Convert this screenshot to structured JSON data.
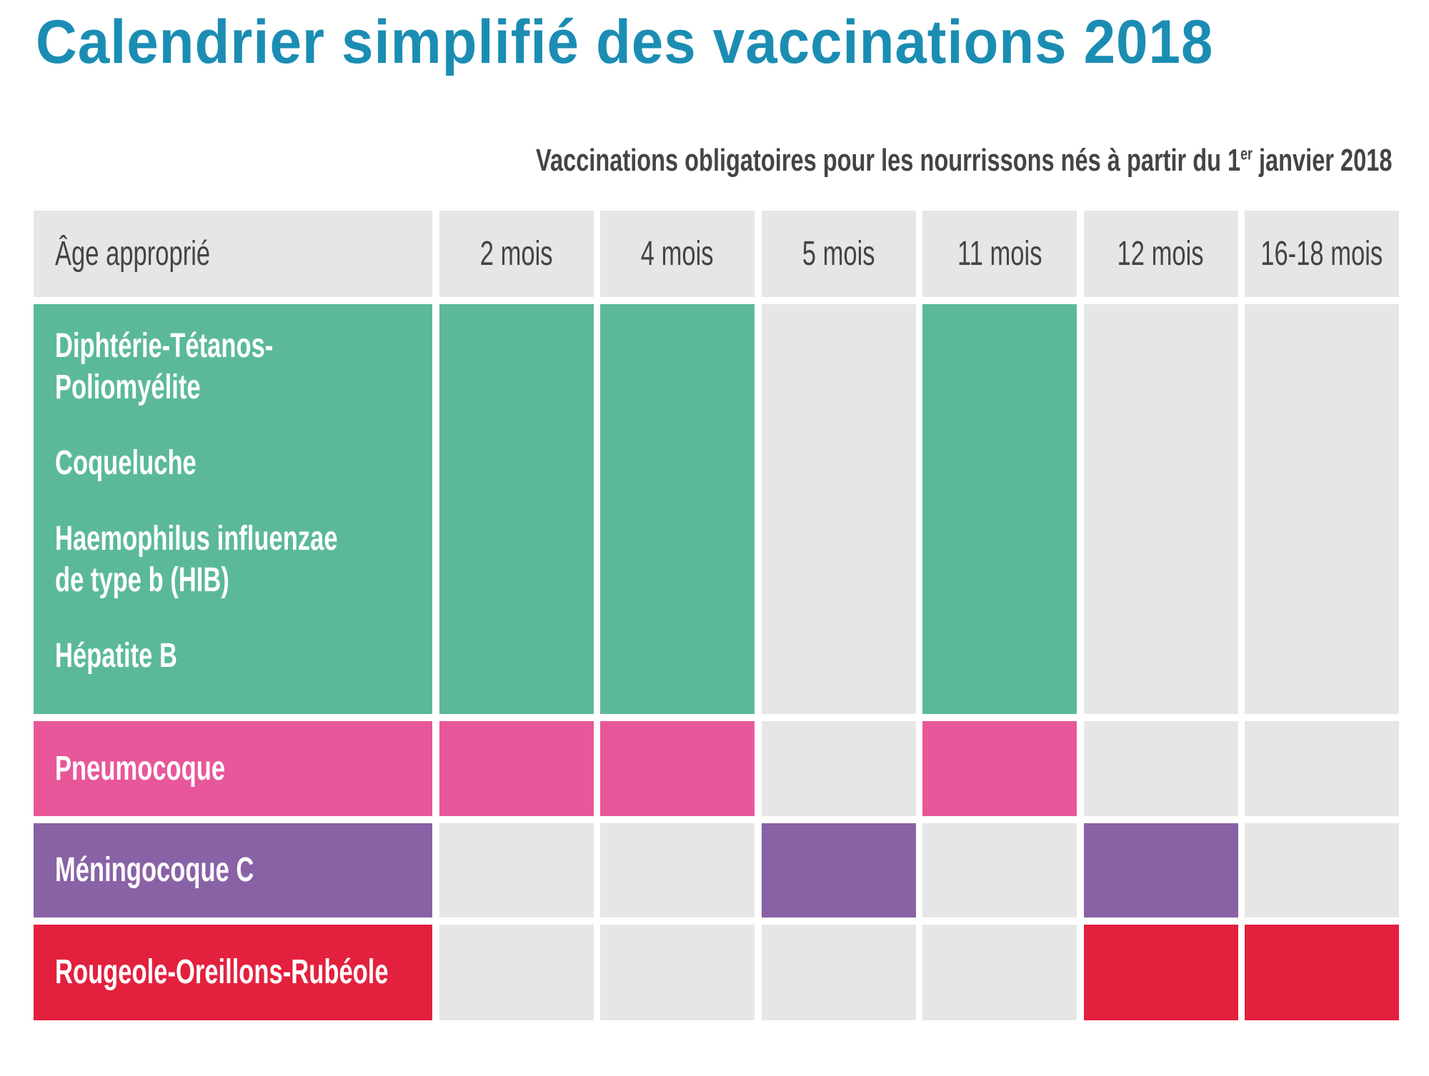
{
  "title": "Calendrier simplifié des vaccinations 2018",
  "subtitle": {
    "before": "Vaccinations obligatoires pour les nourrissons nés à partir du 1",
    "sup": "er",
    "after": " janvier 2018"
  },
  "table": {
    "header_label": "Âge approprié",
    "ages": [
      "2 mois",
      "4 mois",
      "5 mois",
      "11 mois",
      "12 mois",
      "16-18 mois"
    ],
    "empty_color": "#e6e6e6",
    "rows": [
      {
        "labels": [
          [
            "Diphtérie-Tétanos-",
            "Poliomyélite"
          ],
          [
            "Coqueluche"
          ],
          [
            "Haemophilus  influenzae",
            "de type b (HIB)"
          ],
          [
            "Hépatite B"
          ]
        ],
        "color": "#5bb99a",
        "doses": [
          true,
          true,
          false,
          true,
          false,
          false
        ]
      },
      {
        "labels": [
          [
            "Pneumocoque"
          ]
        ],
        "color": "#e8579a",
        "doses": [
          true,
          true,
          false,
          true,
          false,
          false
        ]
      },
      {
        "labels": [
          [
            "Méningocoque C"
          ]
        ],
        "color": "#8962a6",
        "doses": [
          false,
          false,
          true,
          false,
          true,
          false
        ]
      },
      {
        "labels": [
          [
            "Rougeole-Oreillons-Rubéole"
          ]
        ],
        "color": "#e3203d",
        "doses": [
          false,
          false,
          false,
          false,
          true,
          true
        ]
      }
    ]
  }
}
